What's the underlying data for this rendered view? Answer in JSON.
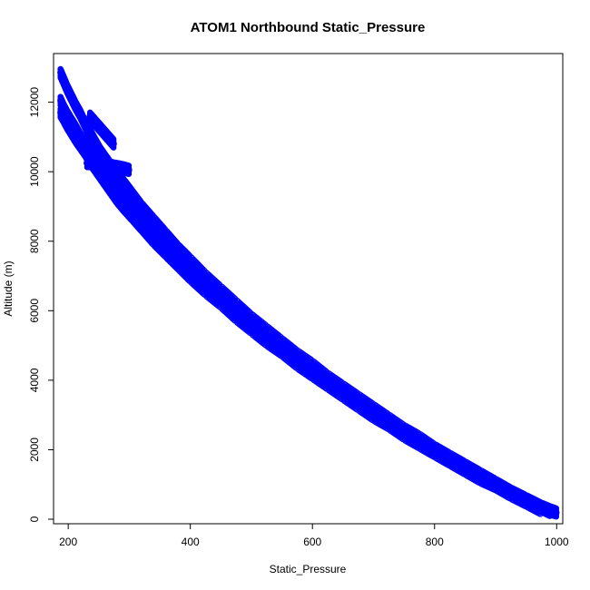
{
  "chart_data": {
    "type": "scatter",
    "title": "ATOM1 Northbound Static_Pressure",
    "xlabel": "Static_Pressure",
    "ylabel": "Altitude (m)",
    "xlim": [
      176,
      1010
    ],
    "ylim": [
      -130,
      13400
    ],
    "xticks": [
      200,
      400,
      600,
      800,
      1000
    ],
    "yticks": [
      0,
      2000,
      4000,
      6000,
      8000,
      10000,
      12000
    ],
    "point_color": "#0000ff",
    "marker": "open-circle",
    "grid": false,
    "legend": "none",
    "series": [
      {
        "x": [
          187,
          192,
          198,
          205,
          212,
          220,
          228,
          236,
          244,
          252,
          260,
          270,
          280,
          292,
          305,
          320,
          340,
          360,
          380,
          400,
          425,
          450,
          475,
          500,
          525,
          550,
          575,
          600,
          625,
          650,
          675,
          700,
          725,
          750,
          775,
          800,
          825,
          850,
          875,
          900,
          925,
          950,
          975,
          990,
          1000
        ],
        "y": [
          12850,
          12650,
          12400,
          12150,
          11900,
          11650,
          11350,
          11100,
          10850,
          10600,
          10400,
          10150,
          9900,
          9650,
          9350,
          9000,
          8600,
          8200,
          7800,
          7450,
          7000,
          6600,
          6200,
          5800,
          5450,
          5100,
          4750,
          4450,
          4100,
          3800,
          3500,
          3200,
          2900,
          2600,
          2350,
          2050,
          1800,
          1550,
          1300,
          1050,
          800,
          580,
          360,
          250,
          190
        ]
      },
      {
        "x": [
          187,
          192,
          198,
          205,
          212,
          220,
          228,
          236,
          244,
          252,
          260,
          270,
          280,
          292,
          305,
          320,
          340,
          360,
          380,
          400,
          425,
          450,
          475,
          500,
          525,
          550,
          575,
          600,
          625,
          650,
          675,
          700,
          725,
          750,
          775,
          800,
          825,
          850,
          875,
          900,
          925,
          950,
          975,
          990
        ],
        "y": [
          12050,
          11850,
          11650,
          11450,
          11250,
          11000,
          10800,
          10550,
          10350,
          10150,
          9950,
          9700,
          9450,
          9200,
          8950,
          8650,
          8250,
          7900,
          7550,
          7200,
          6800,
          6400,
          6050,
          5650,
          5300,
          4950,
          4650,
          4300,
          4000,
          3700,
          3400,
          3100,
          2800,
          2550,
          2250,
          2000,
          1750,
          1500,
          1250,
          1000,
          780,
          550,
          330,
          200
        ]
      },
      {
        "x": [
          187,
          192,
          198,
          205,
          212,
          220,
          228,
          236,
          244,
          252,
          260,
          270,
          280,
          292,
          305,
          320,
          340,
          360,
          380,
          400,
          425,
          450,
          475,
          500,
          525,
          550,
          575,
          600,
          625,
          650,
          675,
          700,
          725,
          750,
          775,
          800,
          825,
          850,
          875,
          900,
          925,
          950,
          975
        ],
        "y": [
          11700,
          11550,
          11350,
          11150,
          10950,
          10750,
          10550,
          10300,
          10100,
          9900,
          9700,
          9450,
          9200,
          8950,
          8700,
          8400,
          8000,
          7650,
          7300,
          6950,
          6550,
          6200,
          5800,
          5450,
          5100,
          4800,
          4450,
          4150,
          3850,
          3550,
          3250,
          2950,
          2700,
          2400,
          2150,
          1900,
          1650,
          1400,
          1150,
          950,
          700,
          480,
          250
        ]
      },
      {
        "x": [
          230,
          245,
          260,
          275,
          290,
          300
        ],
        "y": [
          10250,
          10250,
          10200,
          10150,
          10100,
          10050
        ]
      },
      {
        "x": [
          235,
          245,
          255,
          265,
          275
        ],
        "y": [
          11600,
          11400,
          11200,
          11000,
          10800
        ]
      }
    ]
  }
}
